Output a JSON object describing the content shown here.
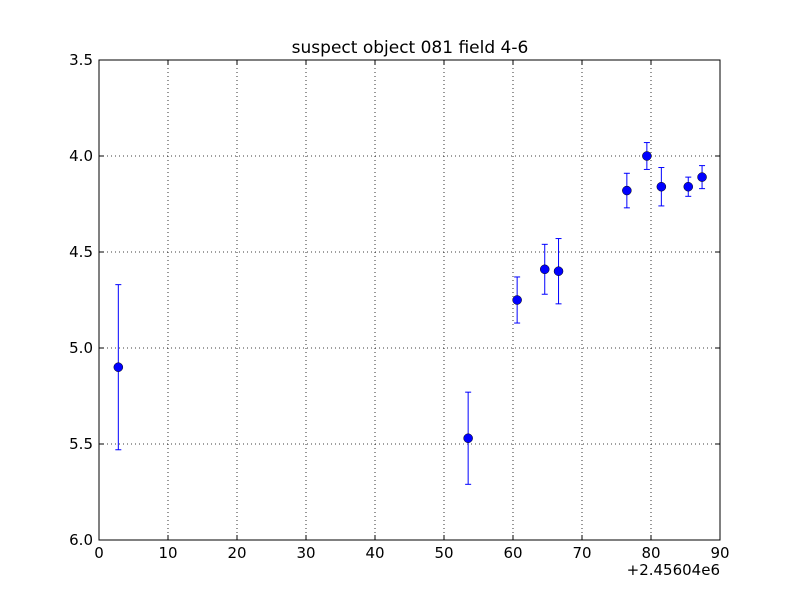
{
  "chart_data": {
    "type": "scatter",
    "title": "suspect object 081 field 4-6",
    "xlabel": "",
    "ylabel": "",
    "x_offset_label": "+2.45604e6",
    "xlim": [
      0,
      90
    ],
    "ylim": [
      6.0,
      3.5
    ],
    "y_inverted": true,
    "grid": true,
    "x_ticks": [
      0,
      10,
      20,
      30,
      40,
      50,
      60,
      70,
      80,
      90
    ],
    "x_tick_labels": [
      "0",
      "10",
      "20",
      "30",
      "40",
      "50",
      "60",
      "70",
      "80",
      "90"
    ],
    "y_ticks": [
      3.5,
      4.0,
      4.5,
      5.0,
      5.5,
      6.0
    ],
    "y_tick_labels": [
      "3.5",
      "4.0",
      "4.5",
      "5.0",
      "5.5",
      "6.0"
    ],
    "marker_color": "#0000ff",
    "errorbar_color": "#0000ff",
    "series": [
      {
        "points": [
          {
            "x": 2.8,
            "y": 5.1,
            "err": 0.43
          },
          {
            "x": 53.5,
            "y": 5.47,
            "err": 0.24
          },
          {
            "x": 60.6,
            "y": 4.75,
            "err": 0.12
          },
          {
            "x": 64.6,
            "y": 4.59,
            "err": 0.13
          },
          {
            "x": 66.6,
            "y": 4.6,
            "err": 0.17
          },
          {
            "x": 76.5,
            "y": 4.18,
            "err": 0.09
          },
          {
            "x": 79.4,
            "y": 4.0,
            "err": 0.07
          },
          {
            "x": 81.5,
            "y": 4.16,
            "err": 0.1
          },
          {
            "x": 85.4,
            "y": 4.16,
            "err": 0.05
          },
          {
            "x": 87.4,
            "y": 4.11,
            "err": 0.06
          }
        ]
      }
    ]
  }
}
